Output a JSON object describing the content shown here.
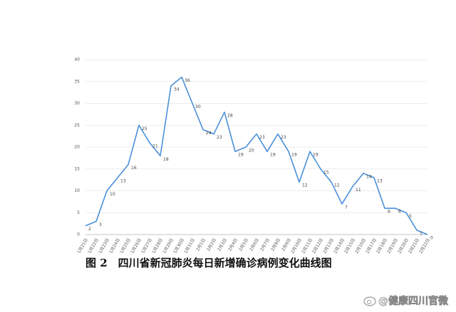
{
  "chart_data": {
    "type": "line",
    "caption": "图 2　四川省新冠肺炎每日新增确诊病例变化曲线图",
    "watermark": "@健康四川官微",
    "categories": [
      "1月21日",
      "1月22日",
      "1月23日",
      "1月24日",
      "1月25日",
      "1月26日",
      "1月27日",
      "1月28日",
      "1月29日",
      "1月30日",
      "1月31日",
      "2月1日",
      "2月2日",
      "2月3日",
      "2月4日",
      "2月5日",
      "2月6日",
      "2月7日",
      "2月8日",
      "2月9日",
      "2月10日",
      "2月11日",
      "2月12日",
      "2月13日",
      "2月14日",
      "2月15日",
      "2月16日",
      "2月17日",
      "2月18日",
      "2月19日",
      "2月20日",
      "2月21日",
      "2月22日"
    ],
    "values": [
      2,
      3,
      10,
      13,
      16,
      25,
      21,
      18,
      34,
      36,
      30,
      24,
      23,
      28,
      19,
      20,
      23,
      19,
      23,
      19,
      12,
      19,
      15,
      12,
      7,
      11,
      14,
      13,
      6,
      6,
      5,
      1,
      0
    ],
    "color": "#4a90d9",
    "ylim": [
      0,
      40
    ],
    "yticks": [
      0,
      5,
      10,
      15,
      20,
      25,
      30,
      35,
      40
    ],
    "grid": true
  }
}
